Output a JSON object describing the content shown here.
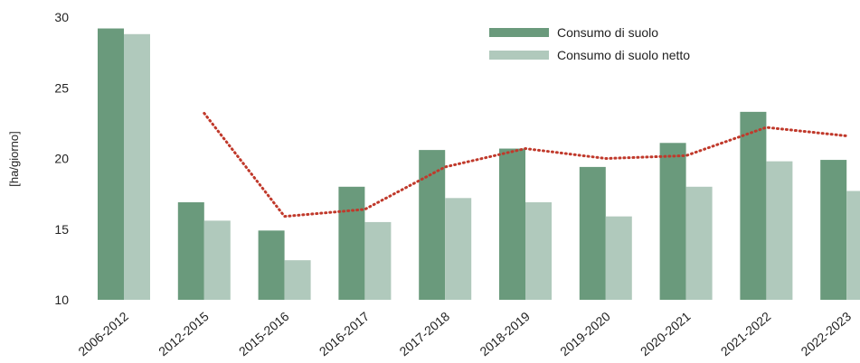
{
  "chart_data": {
    "type": "bar",
    "title": "",
    "xlabel": "",
    "ylabel": "[ha/giorno]",
    "ylim": [
      10,
      30
    ],
    "yticks": [
      10,
      15,
      20,
      25,
      30
    ],
    "grid": false,
    "legend_position": "top-right",
    "categories": [
      "2006-2012",
      "2012-2015",
      "2015-2016",
      "2016-2017",
      "2017-2018",
      "2018-2019",
      "2019-2020",
      "2020-2021",
      "2021-2022",
      "2022-2023"
    ],
    "series": [
      {
        "name": "Consumo di suolo",
        "kind": "bar",
        "color": "#6a9a7c",
        "values": [
          29.2,
          16.9,
          14.9,
          18.0,
          20.6,
          20.7,
          19.4,
          21.1,
          23.3,
          19.9
        ]
      },
      {
        "name": "Consumo di suolo netto",
        "kind": "bar",
        "color": "#b0c9bc",
        "values": [
          28.8,
          15.6,
          12.8,
          15.5,
          17.2,
          16.9,
          15.9,
          18.0,
          19.8,
          17.7
        ]
      },
      {
        "kind": "line",
        "style": "dotted",
        "color": "#c0392b",
        "values": [
          null,
          23.2,
          15.9,
          16.4,
          19.4,
          20.7,
          20.0,
          20.2,
          22.2,
          21.6
        ]
      }
    ]
  }
}
